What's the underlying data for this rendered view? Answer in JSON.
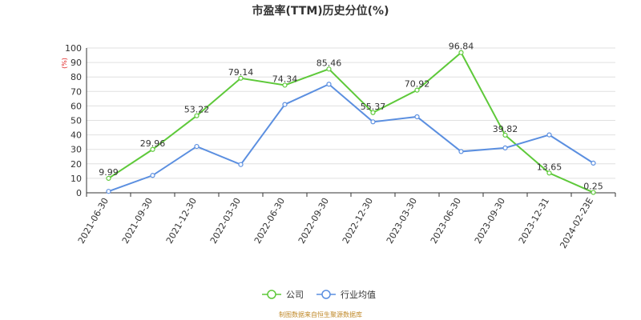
{
  "chart_data": {
    "type": "line",
    "title": "市盈率(TTM)历史分位(%)",
    "unit_label": "(%)",
    "categories": [
      "2021-06-30",
      "2021-09-30",
      "2021-12-30",
      "2022-03-30",
      "2022-06-30",
      "2022-09-30",
      "2022-12-30",
      "2023-03-30",
      "2023-06-30",
      "2023-09-30",
      "2023-12-31",
      "2024-02-23E"
    ],
    "ylim": [
      0,
      100
    ],
    "yticks": [
      0,
      10,
      20,
      30,
      40,
      50,
      60,
      70,
      80,
      90,
      100
    ],
    "grid": true,
    "legend_position": "bottom-center",
    "series": [
      {
        "name": "公司",
        "color": "#5ec93a",
        "values": [
          9.99,
          29.96,
          53.22,
          79.14,
          74.34,
          85.46,
          55.37,
          70.92,
          96.84,
          39.82,
          13.65,
          0.25
        ],
        "labels": [
          "9.99",
          "29.96",
          "53.22",
          "79.14",
          "74.34",
          "85.46",
          "55.37",
          "70.92",
          "96.84",
          "39.82",
          "13.65",
          "0.25"
        ]
      },
      {
        "name": "行业均值",
        "color": "#5b8fe0",
        "values": [
          1.0,
          12.0,
          32.0,
          19.5,
          61.0,
          75.0,
          49.0,
          52.5,
          28.5,
          31.0,
          40.0,
          20.5
        ],
        "labels": []
      }
    ]
  },
  "footer": {
    "source": "制图数据来自恒生聚源数据库"
  }
}
